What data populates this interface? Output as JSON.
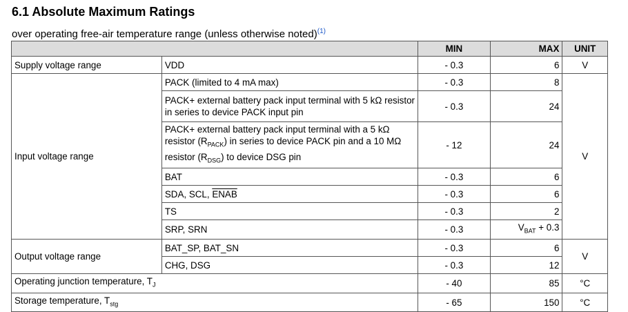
{
  "title": "6.1 Absolute Maximum Ratings",
  "subtitle": "over operating free-air temperature range (unless otherwise noted)",
  "footnote_ref": "(1)",
  "headers": {
    "param": "",
    "cond": "",
    "min": "MIN",
    "max": "MAX",
    "unit": "UNIT"
  },
  "supply": {
    "label": "Supply voltage range",
    "cond": "VDD",
    "min": "- 0.3",
    "max": "6",
    "unit": "V"
  },
  "input": {
    "label": "Input voltage range",
    "unit": "V",
    "rows": [
      {
        "cond": "PACK (limited to 4 mA max)",
        "min": "- 0.3",
        "max": "8"
      },
      {
        "cond": "PACK+ external battery pack input terminal with 5 kΩ resistor in series to device PACK input pin",
        "min": "- 0.3",
        "max": "24"
      },
      {
        "cond_a": "PACK+ external battery pack input terminal with a 5 kΩ resistor (R",
        "cond_sub1": "PACK",
        "cond_b": ") in series to device PACK pin and a 10 MΩ resistor (R",
        "cond_sub2": "DSG",
        "cond_c": ") to device DSG pin",
        "min": "- 12",
        "max": "24"
      },
      {
        "cond": "BAT",
        "min": "- 0.3",
        "max": "6"
      },
      {
        "cond_a": "SDA, SCL, ",
        "cond_over": "ENAB",
        "min": "- 0.3",
        "max": "6"
      },
      {
        "cond": "TS",
        "min": "- 0.3",
        "max": "2"
      },
      {
        "cond": "SRP, SRN",
        "min": "- 0.3",
        "max_a": "V",
        "max_sub": "BAT",
        "max_b": " + 0.3"
      }
    ]
  },
  "output": {
    "label": "Output voltage range",
    "unit": "V",
    "rows": [
      {
        "cond": "BAT_SP, BAT_SN",
        "min": "- 0.3",
        "max": "6"
      },
      {
        "cond": "CHG, DSG",
        "min": "- 0.3",
        "max": "12"
      }
    ]
  },
  "junction": {
    "label": "Operating junction temperature, T",
    "label_sub": "J",
    "min": "- 40",
    "max": "85",
    "unit": "°C"
  },
  "storage": {
    "label": "Storage temperature, T",
    "label_sub": "stg",
    "min": "- 65",
    "max": "150",
    "unit": "°C"
  }
}
